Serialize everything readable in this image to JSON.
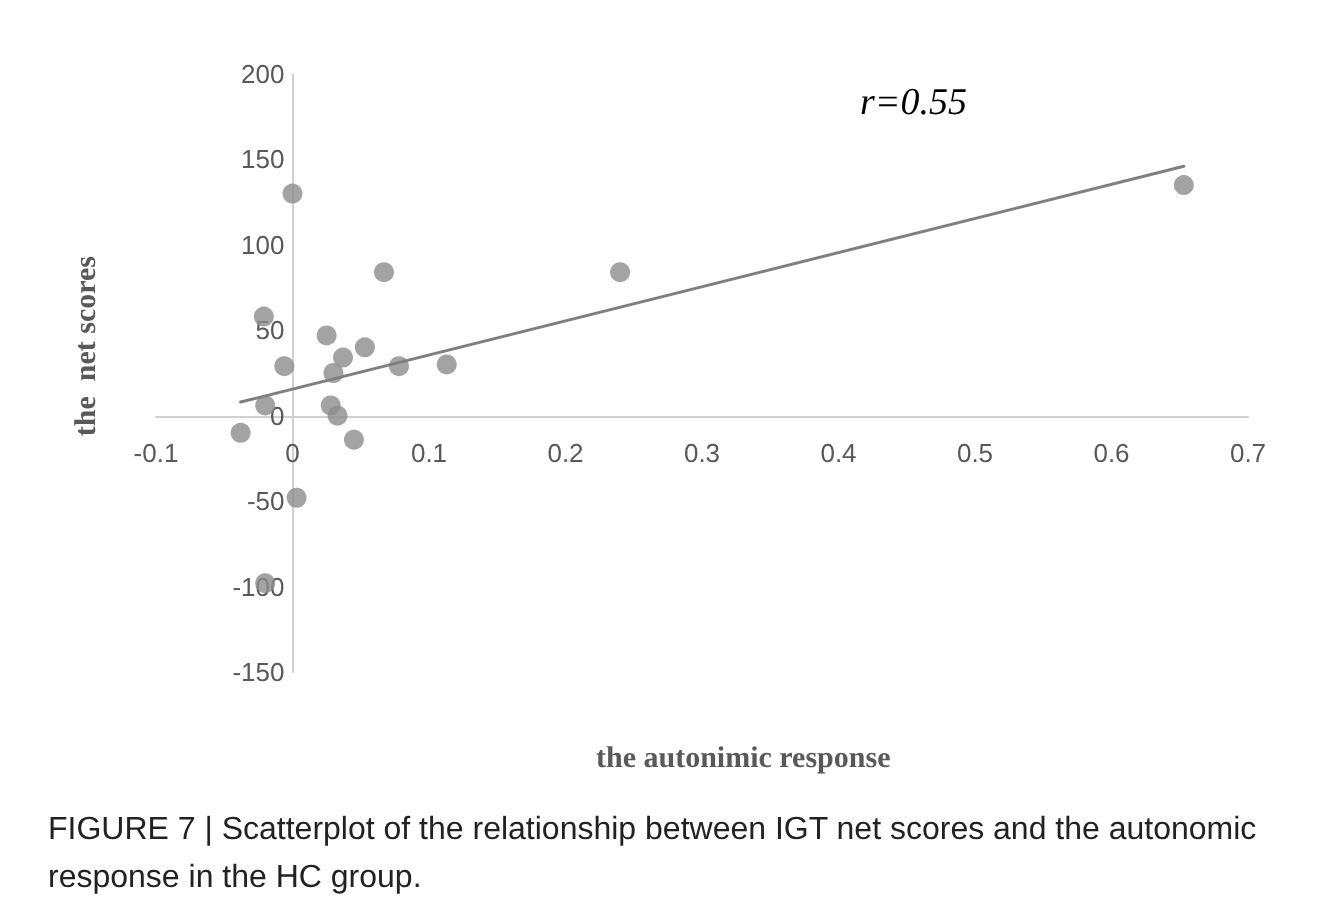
{
  "chart_data": {
    "type": "scatter",
    "xlabel": "the autonimic response",
    "ylabel": "the  net scores",
    "annotations": [
      "r=0.55",
      "FIGURE 7 | Scatterplot of the relationship between IGT net scores and the autonomic response in the HC group."
    ],
    "xlim": [
      -0.1,
      0.7
    ],
    "xticks": [
      -0.1,
      0,
      0.1,
      0.2,
      0.3,
      0.4,
      0.5,
      0.6,
      0.7
    ],
    "ylim": [
      -150,
      200
    ],
    "yticks": [
      -150,
      -100,
      -50,
      0,
      50,
      100,
      150,
      200
    ],
    "grid": false,
    "marker": "circle",
    "series": [
      {
        "color": "#8c8c8c",
        "x": [
          0,
          0.067,
          -0.021,
          0.025,
          0.037,
          0.053,
          -0.006,
          0.03,
          0.078,
          0.113,
          -0.02,
          0.028,
          0.033,
          -0.038,
          0.045,
          0.003,
          -0.02,
          0.24,
          0.653
        ],
        "values": [
          130,
          84,
          58,
          47,
          34,
          40,
          29,
          25,
          29,
          30,
          6,
          6,
          0,
          -10,
          -14,
          -48,
          -98,
          84,
          135
        ]
      },
      {
        "type": "line",
        "marker": "none",
        "color": "#7f7f7f",
        "x": [
          -0.038,
          0.653
        ],
        "values": [
          8,
          146
        ]
      }
    ]
  }
}
